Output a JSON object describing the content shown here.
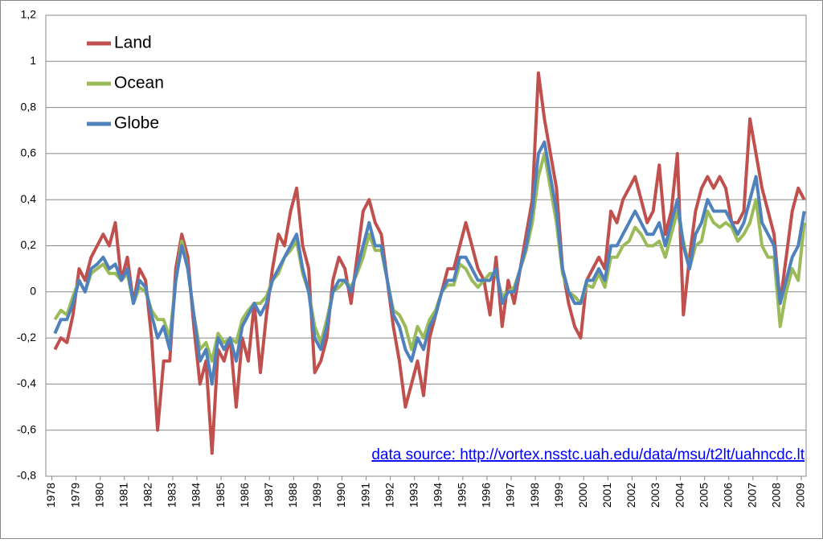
{
  "chart_data": {
    "type": "line",
    "annotation": "data source: http://vortex.nsstc.uah.edu/data/msu/t2lt/uahncdc.lt",
    "legend": "top-left",
    "grid": true,
    "xlim": [
      1977.75,
      2009.2
    ],
    "xticks": [
      1978,
      1979,
      1980,
      1981,
      1982,
      1983,
      1984,
      1985,
      1986,
      1987,
      1988,
      1989,
      1990,
      1991,
      1992,
      1993,
      1994,
      1995,
      1996,
      1997,
      1998,
      1999,
      2000,
      2001,
      2002,
      2003,
      2004,
      2005,
      2006,
      2007,
      2008,
      2009
    ],
    "ylim": [
      -0.8,
      1.2
    ],
    "yticks": [
      {
        "value": -0.8,
        "label": "-0,8"
      },
      {
        "value": -0.6,
        "label": "-0,6"
      },
      {
        "value": -0.4,
        "label": "-0,4"
      },
      {
        "value": -0.2,
        "label": "-0,2"
      },
      0,
      {
        "value": 0.2,
        "label": "0,2"
      },
      {
        "value": 0.4,
        "label": "0,4"
      },
      {
        "value": 0.6,
        "label": "0,6"
      },
      {
        "value": 0.8,
        "label": "0,8"
      },
      1,
      {
        "value": 1.2,
        "label": "1,2"
      }
    ],
    "x": [
      1978.125,
      1978.375,
      1978.625,
      1978.875,
      1979.125,
      1979.375,
      1979.625,
      1979.875,
      1980.125,
      1980.375,
      1980.625,
      1980.875,
      1981.125,
      1981.375,
      1981.625,
      1981.875,
      1982.125,
      1982.375,
      1982.625,
      1982.875,
      1983.125,
      1983.375,
      1983.625,
      1983.875,
      1984.125,
      1984.375,
      1984.625,
      1984.875,
      1985.125,
      1985.375,
      1985.625,
      1985.875,
      1986.125,
      1986.375,
      1986.625,
      1986.875,
      1987.125,
      1987.375,
      1987.625,
      1987.875,
      1988.125,
      1988.375,
      1988.625,
      1988.875,
      1989.125,
      1989.375,
      1989.625,
      1989.875,
      1990.125,
      1990.375,
      1990.625,
      1990.875,
      1991.125,
      1991.375,
      1991.625,
      1991.875,
      1992.125,
      1992.375,
      1992.625,
      1992.875,
      1993.125,
      1993.375,
      1993.625,
      1993.875,
      1994.125,
      1994.375,
      1994.625,
      1994.875,
      1995.125,
      1995.375,
      1995.625,
      1995.875,
      1996.125,
      1996.375,
      1996.625,
      1996.875,
      1997.125,
      1997.375,
      1997.625,
      1997.875,
      1998.125,
      1998.375,
      1998.625,
      1998.875,
      1999.125,
      1999.375,
      1999.625,
      1999.875,
      2000.125,
      2000.375,
      2000.625,
      2000.875,
      2001.125,
      2001.375,
      2001.625,
      2001.875,
      2002.125,
      2002.375,
      2002.625,
      2002.875,
      2003.125,
      2003.375,
      2003.625,
      2003.875,
      2004.125,
      2004.375,
      2004.625,
      2004.875,
      2005.125,
      2005.375,
      2005.625,
      2005.875,
      2006.125,
      2006.375,
      2006.625,
      2006.875,
      2007.125,
      2007.375,
      2007.625,
      2007.875,
      2008.125,
      2008.375,
      2008.625,
      2008.875,
      2009.125
    ],
    "series": [
      {
        "name": "Land",
        "color": "#c0504d",
        "values": [
          -0.25,
          -0.2,
          -0.22,
          -0.1,
          0.1,
          0.05,
          0.15,
          0.2,
          0.25,
          0.2,
          0.3,
          0.05,
          0.15,
          -0.05,
          0.1,
          0.05,
          -0.2,
          -0.6,
          -0.3,
          -0.3,
          0.1,
          0.25,
          0.15,
          -0.15,
          -0.4,
          -0.3,
          -0.7,
          -0.25,
          -0.3,
          -0.2,
          -0.5,
          -0.2,
          -0.3,
          -0.05,
          -0.35,
          -0.1,
          0.1,
          0.25,
          0.2,
          0.35,
          0.45,
          0.2,
          0.1,
          -0.35,
          -0.3,
          -0.2,
          0.05,
          0.15,
          0.1,
          -0.05,
          0.15,
          0.35,
          0.4,
          0.3,
          0.25,
          0.05,
          -0.15,
          -0.3,
          -0.5,
          -0.4,
          -0.3,
          -0.45,
          -0.2,
          -0.1,
          0,
          0.1,
          0.1,
          0.2,
          0.3,
          0.2,
          0.1,
          0.05,
          -0.1,
          0.15,
          -0.15,
          0.05,
          -0.05,
          0.1,
          0.25,
          0.4,
          0.95,
          0.75,
          0.6,
          0.45,
          0.1,
          -0.05,
          -0.15,
          -0.2,
          0.05,
          0.1,
          0.15,
          0.1,
          0.35,
          0.3,
          0.4,
          0.45,
          0.5,
          0.4,
          0.3,
          0.35,
          0.55,
          0.25,
          0.35,
          0.6,
          -0.1,
          0.15,
          0.35,
          0.45,
          0.5,
          0.45,
          0.5,
          0.45,
          0.3,
          0.3,
          0.35,
          0.75,
          0.6,
          0.45,
          0.35,
          0.25,
          -0.05,
          0.15,
          0.35,
          0.45,
          0.4
        ]
      },
      {
        "name": "Ocean",
        "color": "#9bbb59",
        "values": [
          -0.12,
          -0.08,
          -0.1,
          -0.02,
          0.05,
          0,
          0.08,
          0.1,
          0.12,
          0.08,
          0.08,
          0.05,
          0.08,
          -0.05,
          0.02,
          0,
          -0.08,
          -0.12,
          -0.12,
          -0.2,
          0.05,
          0.22,
          0.1,
          -0.1,
          -0.25,
          -0.22,
          -0.3,
          -0.18,
          -0.22,
          -0.2,
          -0.22,
          -0.12,
          -0.08,
          -0.05,
          -0.05,
          -0.02,
          0.05,
          0.08,
          0.15,
          0.18,
          0.22,
          0.08,
          0,
          -0.15,
          -0.22,
          -0.12,
          0,
          0.02,
          0.05,
          0.02,
          0.08,
          0.15,
          0.25,
          0.18,
          0.18,
          0.05,
          -0.08,
          -0.1,
          -0.15,
          -0.25,
          -0.15,
          -0.2,
          -0.12,
          -0.08,
          0,
          0.03,
          0.03,
          0.12,
          0.1,
          0.05,
          0.02,
          0.05,
          0.08,
          0.08,
          -0.02,
          0,
          0.02,
          0.1,
          0.18,
          0.3,
          0.5,
          0.6,
          0.45,
          0.3,
          0.08,
          0,
          -0.02,
          -0.05,
          0.03,
          0.02,
          0.08,
          0.02,
          0.15,
          0.15,
          0.2,
          0.22,
          0.28,
          0.25,
          0.2,
          0.2,
          0.22,
          0.15,
          0.25,
          0.35,
          0.22,
          0.1,
          0.2,
          0.22,
          0.35,
          0.3,
          0.28,
          0.3,
          0.28,
          0.22,
          0.25,
          0.3,
          0.4,
          0.2,
          0.15,
          0.15,
          -0.15,
          0,
          0.1,
          0.05,
          0.3
        ]
      },
      {
        "name": "Globe",
        "color": "#4f81bd",
        "values": [
          -0.18,
          -0.12,
          -0.12,
          -0.05,
          0.05,
          0,
          0.1,
          0.12,
          0.15,
          0.1,
          0.12,
          0.05,
          0.1,
          -0.05,
          0.05,
          0.02,
          -0.1,
          -0.2,
          -0.15,
          -0.25,
          0.05,
          0.2,
          0.1,
          -0.1,
          -0.3,
          -0.25,
          -0.4,
          -0.2,
          -0.25,
          -0.2,
          -0.3,
          -0.15,
          -0.1,
          -0.05,
          -0.1,
          -0.05,
          0.05,
          0.1,
          0.15,
          0.2,
          0.25,
          0.1,
          0,
          -0.2,
          -0.25,
          -0.15,
          0,
          0.05,
          0.05,
          0,
          0.1,
          0.2,
          0.3,
          0.2,
          0.2,
          0.05,
          -0.1,
          -0.15,
          -0.25,
          -0.3,
          -0.2,
          -0.25,
          -0.15,
          -0.1,
          0,
          0.05,
          0.05,
          0.15,
          0.15,
          0.1,
          0.05,
          0.05,
          0.05,
          0.1,
          -0.05,
          0,
          0,
          0.1,
          0.2,
          0.35,
          0.6,
          0.65,
          0.5,
          0.35,
          0.1,
          0,
          -0.05,
          -0.05,
          0.05,
          0.05,
          0.1,
          0.05,
          0.2,
          0.2,
          0.25,
          0.3,
          0.35,
          0.3,
          0.25,
          0.25,
          0.3,
          0.2,
          0.3,
          0.4,
          0.2,
          0.1,
          0.25,
          0.3,
          0.4,
          0.35,
          0.35,
          0.35,
          0.3,
          0.25,
          0.3,
          0.4,
          0.5,
          0.3,
          0.25,
          0.2,
          -0.05,
          0.05,
          0.15,
          0.2,
          0.35
        ]
      }
    ]
  }
}
